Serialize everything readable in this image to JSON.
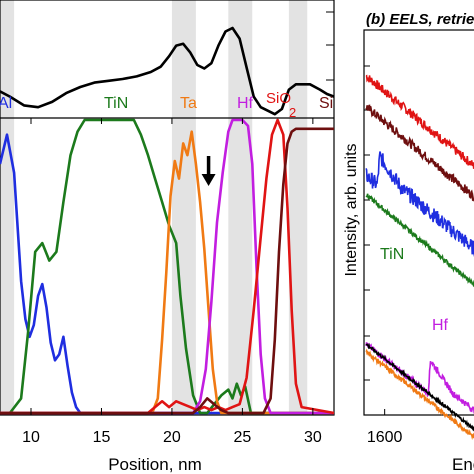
{
  "chart_data": [
    {
      "panel": "a",
      "type": "line",
      "xlabel": "Position, nm",
      "ylabel": "",
      "xlim": [
        7.8,
        31.5
      ],
      "xticks": [
        10,
        15,
        20,
        25,
        30
      ],
      "grid": false,
      "shaded_bands": [
        [
          7.8,
          8.8
        ],
        [
          20.0,
          21.7
        ],
        [
          24.0,
          25.7
        ],
        [
          28.3,
          29.6
        ]
      ],
      "top_trace": {
        "color": "#000000",
        "x": [
          7.8,
          8.5,
          9.5,
          10.5,
          11.5,
          12.5,
          13.5,
          14.5,
          15.5,
          16.5,
          17.5,
          18.5,
          19.2,
          19.8,
          20.3,
          20.8,
          21.3,
          21.8,
          22.3,
          22.8,
          23.3,
          23.8,
          24.3,
          24.8,
          25.3,
          25.8,
          26.3,
          26.8,
          27.3,
          27.8,
          28.3,
          28.8,
          29.3,
          29.8,
          30.5,
          31.0,
          31.5
        ],
        "y": [
          0.28,
          0.22,
          0.12,
          0.1,
          0.16,
          0.26,
          0.33,
          0.38,
          0.4,
          0.42,
          0.45,
          0.5,
          0.56,
          0.68,
          0.8,
          0.82,
          0.72,
          0.58,
          0.54,
          0.6,
          0.8,
          0.96,
          1.0,
          0.88,
          0.55,
          0.22,
          0.1,
          0.06,
          0.02,
          0.08,
          0.3,
          0.36,
          0.36,
          0.36,
          0.3,
          0.25,
          0.22
        ]
      },
      "series": [
        {
          "name": "Al",
          "color": "#1f2ee0",
          "x": [
            7.8,
            8.3,
            8.8,
            9.3,
            9.6,
            9.9,
            10.2,
            10.5,
            10.8,
            11.1,
            11.4,
            11.7,
            12.0,
            12.3,
            12.6,
            12.9,
            13.2,
            13.5,
            14.0,
            31.5
          ],
          "y": [
            0.85,
            0.95,
            0.82,
            0.45,
            0.32,
            0.26,
            0.3,
            0.4,
            0.44,
            0.36,
            0.24,
            0.18,
            0.2,
            0.26,
            0.16,
            0.07,
            0.02,
            0.0,
            0.0,
            0.0
          ]
        },
        {
          "name": "TiN",
          "color": "#1c7a1c",
          "x": [
            7.8,
            8.5,
            9.3,
            9.8,
            10.3,
            10.8,
            11.3,
            11.8,
            12.3,
            12.8,
            13.3,
            13.8,
            14.3,
            14.8,
            15.3,
            15.8,
            16.3,
            16.8,
            17.3,
            17.8,
            18.3,
            18.8,
            19.3,
            19.8,
            20.3,
            20.6,
            21.0,
            21.5,
            22.0,
            22.5,
            23.0,
            23.5,
            24.0,
            24.3,
            24.6,
            24.9,
            25.2,
            25.6,
            31.5
          ],
          "y": [
            0.0,
            0.0,
            0.05,
            0.28,
            0.55,
            0.58,
            0.52,
            0.55,
            0.72,
            0.88,
            0.96,
            1.0,
            1.0,
            1.0,
            1.0,
            1.0,
            1.0,
            1.0,
            1.0,
            0.95,
            0.88,
            0.8,
            0.72,
            0.64,
            0.58,
            0.4,
            0.22,
            0.06,
            0.0,
            0.0,
            0.03,
            0.06,
            0.08,
            0.05,
            0.1,
            0.06,
            0.09,
            0.0,
            0.0
          ]
        },
        {
          "name": "Ta",
          "color": "#f07a14",
          "x": [
            7.8,
            18.6,
            19.0,
            19.3,
            19.6,
            19.9,
            20.2,
            20.5,
            20.8,
            21.1,
            21.4,
            21.7,
            22.0,
            22.3,
            22.6,
            22.9,
            23.2,
            23.5,
            24.0,
            31.5
          ],
          "y": [
            0.0,
            0.0,
            0.05,
            0.25,
            0.48,
            0.74,
            0.86,
            0.8,
            0.92,
            0.88,
            0.96,
            0.85,
            0.72,
            0.56,
            0.35,
            0.15,
            0.04,
            0.0,
            0.0,
            0.0
          ]
        },
        {
          "name": "Hf",
          "color": "#c21ee0",
          "x": [
            7.8,
            21.5,
            22.0,
            22.4,
            22.8,
            23.2,
            23.6,
            24.0,
            24.3,
            24.6,
            25.0,
            25.4,
            25.7,
            26.0,
            26.3,
            26.6,
            27.0,
            31.5
          ],
          "y": [
            0.0,
            0.0,
            0.04,
            0.15,
            0.38,
            0.65,
            0.82,
            0.96,
            1.0,
            1.0,
            1.0,
            0.98,
            0.85,
            0.5,
            0.2,
            0.05,
            0.0,
            0.0
          ]
        },
        {
          "name": "SiO2",
          "color": "#e01414",
          "x": [
            7.8,
            18.3,
            18.8,
            19.3,
            19.8,
            20.3,
            20.8,
            21.3,
            21.8,
            22.3,
            22.8,
            23.3,
            23.8,
            24.3,
            24.8,
            25.3,
            25.8,
            26.3,
            26.7,
            27.1,
            27.5,
            27.9,
            28.2,
            28.5,
            28.8,
            29.2,
            31.5
          ],
          "y": [
            0.0,
            0.0,
            0.02,
            0.04,
            0.02,
            0.04,
            0.03,
            0.02,
            0.01,
            0.02,
            0.01,
            0.02,
            0.01,
            0.02,
            0.03,
            0.12,
            0.35,
            0.6,
            0.8,
            0.95,
            1.0,
            0.95,
            0.7,
            0.35,
            0.1,
            0.02,
            0.0
          ]
        },
        {
          "name": "Si",
          "color": "#6e0f0f",
          "x": [
            7.8,
            21.5,
            22.0,
            22.5,
            23.0,
            23.5,
            24.0,
            24.5,
            25.0,
            25.5,
            26.0,
            26.5,
            27.0,
            27.3,
            27.6,
            27.9,
            28.2,
            28.5,
            28.8,
            29.2,
            30.0,
            31.5
          ],
          "y": [
            0.0,
            0.0,
            0.02,
            0.05,
            0.03,
            0.01,
            0.0,
            0.0,
            0.0,
            0.0,
            0.0,
            0.0,
            0.05,
            0.25,
            0.55,
            0.78,
            0.92,
            0.96,
            0.97,
            0.97,
            0.97,
            0.97
          ]
        }
      ],
      "labels": [
        {
          "text": "Al",
          "color": "#1f2ee0"
        },
        {
          "text": "TiN",
          "color": "#1c7a1c"
        },
        {
          "text": "Ta",
          "color": "#f07a14"
        },
        {
          "text": "Hf",
          "color": "#c21ee0"
        },
        {
          "text": "SiO",
          "color": "#e01414"
        },
        {
          "text": "2",
          "color": "#e01414"
        },
        {
          "text": "Si",
          "color": "#6e0f0f"
        }
      ],
      "arrow_x": 22.6
    },
    {
      "panel": "b",
      "type": "line",
      "title": "(b) EELS, retrie",
      "xlabel": "Ene",
      "ylabel": "Intensity, arb. units",
      "xlim": [
        1550,
        1850
      ],
      "xticks": [
        1600
      ],
      "grid": false,
      "series": [
        {
          "color": "#e01414",
          "x0": 1555,
          "y0": 0.88,
          "slope": -0.0009,
          "noise": 0.006
        },
        {
          "color": "#6e0f0f",
          "x0": 1555,
          "y0": 0.8,
          "slope": -0.0009,
          "noise": 0.006
        },
        {
          "color": "#1f2ee0",
          "x0": 1555,
          "y0": 0.62,
          "slope": -0.0009,
          "noise": 0.01,
          "edge_at": 1582,
          "edge_height": 0.08
        },
        {
          "name": "TiN",
          "color": "#1c7a1c",
          "x0": 1555,
          "y0": 0.57,
          "slope": -0.0009,
          "noise": 0.003
        },
        {
          "name": "Hf",
          "color": "#c21ee0",
          "x0": 1555,
          "y0": 0.18,
          "slope": -0.00085,
          "noise": 0.004,
          "edge_at": 1705,
          "edge_height": 0.09
        },
        {
          "color": "#000000",
          "x0": 1555,
          "y0": 0.18,
          "slope": -0.00085,
          "noise": 0.002
        },
        {
          "color": "#f07a14",
          "x0": 1555,
          "y0": 0.16,
          "slope": -0.00085,
          "noise": 0.003
        }
      ],
      "labels": [
        {
          "text": "TiN",
          "color": "#1c7a1c"
        },
        {
          "text": "Hf",
          "color": "#c21ee0"
        }
      ]
    }
  ]
}
